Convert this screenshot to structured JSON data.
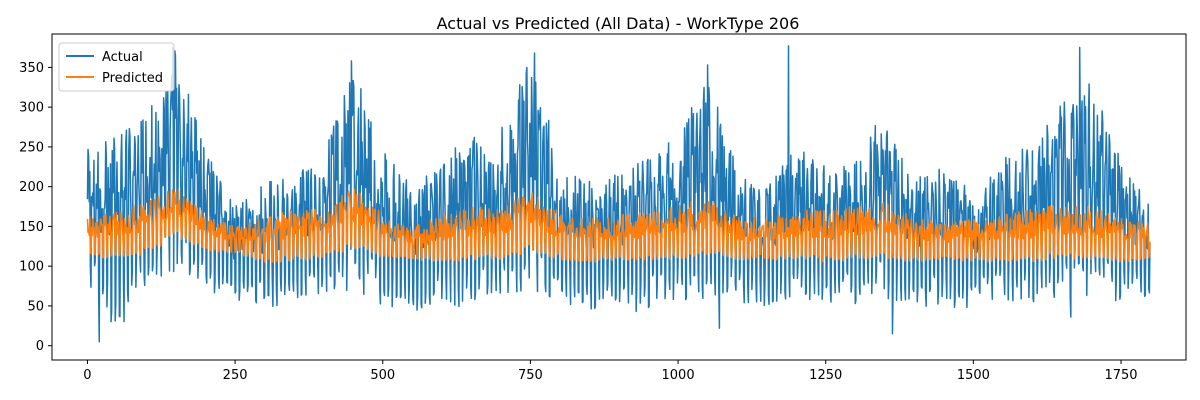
{
  "chart_data": {
    "type": "line",
    "title": "Actual vs Predicted (All Data) - WorkType 206",
    "xlabel": "",
    "ylabel": "",
    "xlim": [
      -60,
      1860
    ],
    "ylim": [
      -18,
      392
    ],
    "x_ticks": [
      0,
      250,
      500,
      750,
      1000,
      1250,
      1500,
      1750
    ],
    "y_ticks": [
      0,
      50,
      100,
      150,
      200,
      250,
      300,
      350
    ],
    "grid": false,
    "legend_position": "top-left",
    "n_points": 1800,
    "series": [
      {
        "name": "Actual",
        "color": "#1f77b4",
        "x_start": 0,
        "x_step": 1,
        "envelope_x": [
          0,
          50,
          100,
          150,
          200,
          250,
          300,
          350,
          400,
          450,
          500,
          550,
          600,
          650,
          700,
          750,
          800,
          850,
          900,
          950,
          1000,
          1050,
          1100,
          1150,
          1200,
          1250,
          1300,
          1350,
          1400,
          1450,
          1500,
          1550,
          1600,
          1650,
          1700,
          1750,
          1799
        ],
        "envelope_high": [
          250,
          265,
          290,
          375,
          250,
          175,
          205,
          215,
          240,
          355,
          245,
          200,
          235,
          265,
          275,
          365,
          240,
          215,
          225,
          245,
          270,
          350,
          225,
          200,
          250,
          225,
          230,
          300,
          210,
          225,
          195,
          245,
          250,
          305,
          340,
          235,
          180
        ],
        "envelope_low": [
          75,
          10,
          80,
          85,
          70,
          50,
          45,
          45,
          60,
          70,
          50,
          40,
          55,
          45,
          50,
          70,
          50,
          45,
          40,
          45,
          50,
          60,
          55,
          50,
          60,
          55,
          50,
          60,
          45,
          50,
          45,
          55,
          55,
          60,
          60,
          55,
          60
        ],
        "spikes": [
          {
            "x": 20,
            "y": 5
          },
          {
            "x": 145,
            "y": 375
          },
          {
            "x": 447,
            "y": 358
          },
          {
            "x": 757,
            "y": 368
          },
          {
            "x": 1050,
            "y": 353
          },
          {
            "x": 1187,
            "y": 377
          },
          {
            "x": 1363,
            "y": 15
          },
          {
            "x": 1070,
            "y": 22
          },
          {
            "x": 1680,
            "y": 375
          },
          {
            "x": 1665,
            "y": 36
          }
        ]
      },
      {
        "name": "Predicted",
        "color": "#ff7f0e",
        "x_start": 0,
        "x_step": 1,
        "envelope_x": [
          0,
          50,
          100,
          150,
          200,
          250,
          300,
          350,
          400,
          450,
          500,
          550,
          600,
          650,
          700,
          750,
          800,
          850,
          900,
          950,
          1000,
          1050,
          1100,
          1150,
          1200,
          1250,
          1300,
          1350,
          1400,
          1450,
          1500,
          1550,
          1600,
          1650,
          1700,
          1750,
          1799
        ],
        "envelope_high": [
          165,
          175,
          180,
          200,
          165,
          150,
          160,
          172,
          175,
          200,
          165,
          150,
          165,
          175,
          175,
          195,
          165,
          160,
          165,
          170,
          178,
          185,
          162,
          160,
          170,
          172,
          175,
          180,
          160,
          155,
          160,
          165,
          172,
          178,
          175,
          162,
          155
        ],
        "envelope_low": [
          110,
          108,
          115,
          135,
          120,
          115,
          105,
          105,
          110,
          120,
          110,
          108,
          105,
          108,
          108,
          118,
          108,
          105,
          105,
          108,
          108,
          115,
          108,
          108,
          108,
          105,
          108,
          110,
          105,
          108,
          105,
          105,
          105,
          110,
          108,
          105,
          108
        ]
      }
    ]
  }
}
